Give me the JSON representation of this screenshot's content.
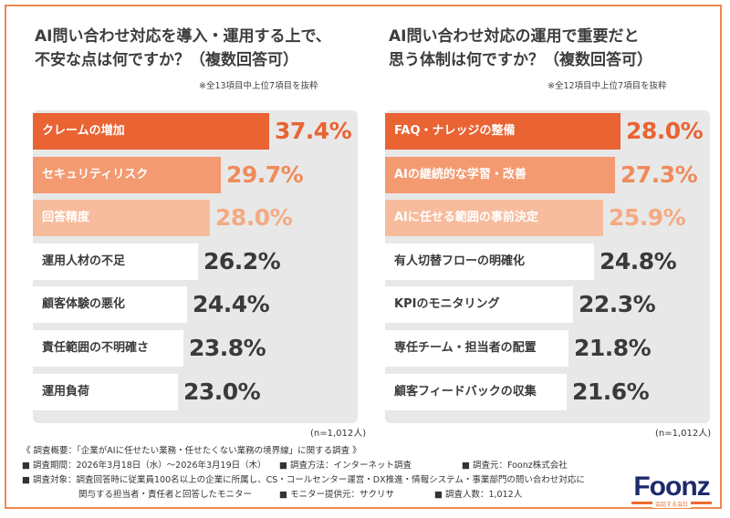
{
  "left": {
    "title_line1": "AI問い合わせ対応を導入・運用する上で、",
    "title_line2": "不安な点は何ですか？（複数回答可）",
    "note": "※全13項目中上位7項目を抜粋",
    "n_label": "(n=1,012人)"
  },
  "right": {
    "title_line1": "AI問い合わせ対応の運用で重要だと",
    "title_line2": "思う体制は何ですか？（複数回答可）",
    "note": "※全12項目中上位7項目を抜粋",
    "n_label": "(n=1,012人)"
  },
  "colors": {
    "rank1": "#e96333",
    "rank2": "#f39a71",
    "rank3": "#f7bc9d",
    "rank1_text": "#e96333",
    "rank2_text": "#f08a5a",
    "rank3_text": "#f5aa83",
    "other_bar": "#d9d9d9",
    "other_text": "#3a3a3a"
  },
  "chart_data": [
    {
      "type": "bar",
      "orientation": "horizontal",
      "title": "AI問い合わせ対応を導入・運用する上で、不安な点は何ですか？（複数回答可）",
      "unit": "%",
      "categories": [
        "クレームの増加",
        "セキュリティリスク",
        "回答精度",
        "運用人材の不足",
        "顧客体験の悪化",
        "責任範囲の不明確さ",
        "運用負荷"
      ],
      "values": [
        37.4,
        29.7,
        28.0,
        26.2,
        24.4,
        23.8,
        23.0
      ],
      "value_labels": [
        "37.4%",
        "29.7%",
        "28.0%",
        "26.2%",
        "24.4%",
        "23.8%",
        "23.0%"
      ],
      "xlim": [
        0,
        50
      ],
      "n": "n=1,012人"
    },
    {
      "type": "bar",
      "orientation": "horizontal",
      "title": "AI問い合わせ対応の運用で重要だと思う体制は何ですか？（複数回答可）",
      "unit": "%",
      "categories": [
        "FAQ・ナレッジの整備",
        "AIの継続的な学習・改善",
        "AIに任せる範囲の事前決定",
        "有人切替フローの明確化",
        "KPIのモニタリング",
        "専任チーム・担当者の配置",
        "顧客フィードバックの収集"
      ],
      "values": [
        28.0,
        27.3,
        25.9,
        24.8,
        22.3,
        21.8,
        21.6
      ],
      "value_labels": [
        "28.0%",
        "27.3%",
        "25.9%",
        "24.8%",
        "22.3%",
        "21.8%",
        "21.6%"
      ],
      "xlim": [
        0,
        37.5
      ],
      "n": "n=1,012人"
    }
  ],
  "footer": {
    "line1": "《 調査概要：「企業がAIに任せたい業務・任せたくない業務の境界線」に関する調査 》",
    "period": "■ 調査期間：2026年3月18日（水）〜2026年3月19日（木）",
    "method": "■ 調査方法：インターネット調査",
    "source": "■ 調査元：Foonz株式会社",
    "target": "■ 調査対象：調査回答時に従業員100名以上の企業に所属し、CS・コールセンター運営・DX推進・情報システム・事業部門の問い合わせ対応に",
    "target2": "関与する担当者・責任者と回答したモニター",
    "provider": "■ モニター提供元：サクリサ",
    "count": "■ 調査人数：1,012人"
  },
  "logo": {
    "text": "Foonz",
    "sub": "会話する会社"
  }
}
